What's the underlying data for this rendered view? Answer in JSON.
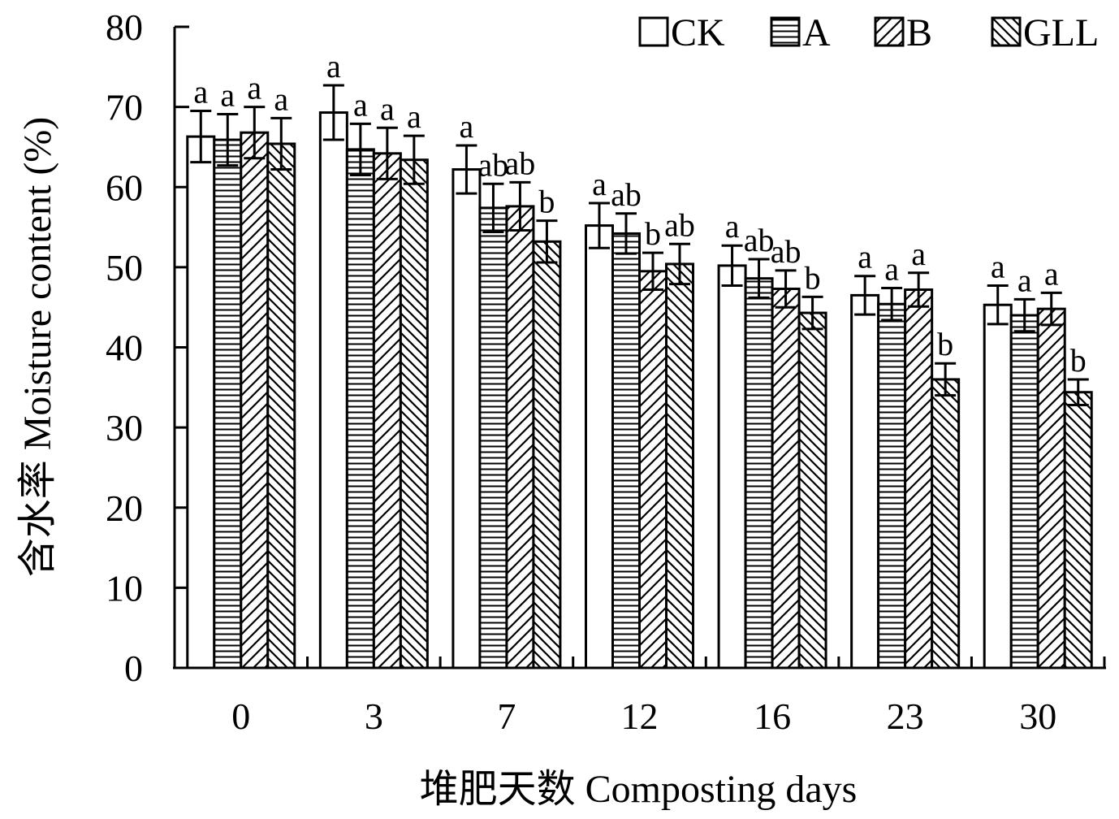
{
  "chart_data": {
    "type": "bar",
    "xlabel": "堆肥天数 Composting days",
    "ylabel": "含水率 Moisture content (%)",
    "ylim": [
      0,
      80
    ],
    "yticks": [
      0,
      10,
      20,
      30,
      40,
      50,
      60,
      70,
      80
    ],
    "categories": [
      "0",
      "3",
      "7",
      "12",
      "16",
      "23",
      "30"
    ],
    "legend_position": "top-right",
    "series": [
      {
        "name": "CK",
        "pattern": "empty",
        "values": [
          66.3,
          69.3,
          62.2,
          55.2,
          50.2,
          46.5,
          45.3
        ],
        "errors": [
          3.2,
          3.4,
          3.0,
          2.8,
          2.5,
          2.4,
          2.4
        ],
        "labels": [
          "a",
          "a",
          "a",
          "a",
          "a",
          "a",
          "a"
        ]
      },
      {
        "name": "A",
        "pattern": "horizontal",
        "values": [
          65.9,
          64.7,
          57.4,
          54.2,
          48.6,
          45.4,
          44.0
        ],
        "errors": [
          3.2,
          3.2,
          3.0,
          2.5,
          2.4,
          2.0,
          2.0
        ],
        "labels": [
          "a",
          "a",
          "ab",
          "ab",
          "ab",
          "a",
          "a"
        ]
      },
      {
        "name": "B",
        "pattern": "forward-diagonal",
        "values": [
          66.8,
          64.2,
          57.6,
          49.5,
          47.3,
          47.2,
          44.8
        ],
        "errors": [
          3.2,
          3.2,
          3.0,
          2.3,
          2.3,
          2.1,
          2.0
        ],
        "labels": [
          "a",
          "a",
          "ab",
          "b",
          "ab",
          "a",
          "a"
        ]
      },
      {
        "name": "GLL",
        "pattern": "back-diagonal",
        "values": [
          65.4,
          63.4,
          53.2,
          50.4,
          44.3,
          36.0,
          34.4
        ],
        "errors": [
          3.2,
          3.0,
          2.6,
          2.5,
          2.0,
          2.0,
          1.6
        ],
        "labels": [
          "a",
          "a",
          "b",
          "ab",
          "b",
          "b",
          "b"
        ]
      }
    ]
  }
}
